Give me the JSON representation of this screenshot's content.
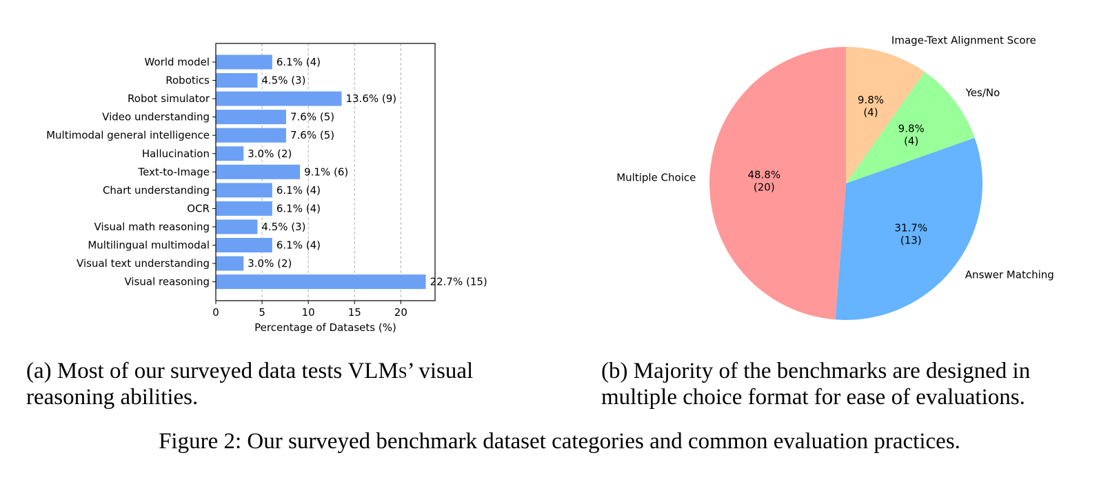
{
  "chart_data": [
    {
      "type": "bar",
      "orientation": "horizontal",
      "categories": [
        "World model",
        "Robotics",
        "Robot simulator",
        "Video understanding",
        "Multimodal general intelligence",
        "Hallucination",
        "Text-to-Image",
        "Chart understanding",
        "OCR",
        "Visual math reasoning",
        "Multilingual multimodal",
        "Visual text understanding",
        "Visual reasoning"
      ],
      "values": [
        6.1,
        4.5,
        13.6,
        7.6,
        7.6,
        3.0,
        9.1,
        6.1,
        6.1,
        4.5,
        6.1,
        3.0,
        22.7
      ],
      "data_labels": [
        "6.1% (4)",
        "4.5% (3)",
        "13.6% (9)",
        "7.6% (5)",
        "7.6% (5)",
        "3.0% (2)",
        "9.1% (6)",
        "6.1% (4)",
        "6.1% (4)",
        "4.5% (3)",
        "6.1% (4)",
        "3.0% (2)",
        "22.7% (15)"
      ],
      "xlabel": "Percentage of Datasets (%)",
      "ylabel": "",
      "xlim": [
        0,
        23.7
      ],
      "xticks": [
        "0",
        "5",
        "10",
        "15",
        "20"
      ],
      "grid": "x-dashed",
      "bar_color": "#6ca0f5"
    },
    {
      "type": "pie",
      "start": "top, clockwise",
      "slices": [
        {
          "label": "Image-Text Alignment Score",
          "value": 9.8,
          "pct_label": "9.8%",
          "count_label": "(4)",
          "color": "#ffcc99"
        },
        {
          "label": "Yes/No",
          "value": 9.8,
          "pct_label": "9.8%",
          "count_label": "(4)",
          "color": "#99ff99"
        },
        {
          "label": "Answer Matching",
          "value": 31.7,
          "pct_label": "31.7%",
          "count_label": "(13)",
          "color": "#66b3ff"
        },
        {
          "label": "Multiple Choice",
          "value": 48.8,
          "pct_label": "48.8%",
          "count_label": "(20)",
          "color": "#ff9999"
        }
      ]
    }
  ],
  "captions": {
    "a_prefix": "(a) Most of our surveyed data tests ",
    "a_vlms": "VLMs",
    "a_suffix_line1": "’ visual",
    "a_line2": "reasoning abilities.",
    "b_line1": "(b) Majority of the benchmarks are designed in",
    "b_line2": "multiple choice format for ease of evaluations.",
    "figure": "Figure 2: Our surveyed benchmark dataset categories and common evaluation practices."
  }
}
